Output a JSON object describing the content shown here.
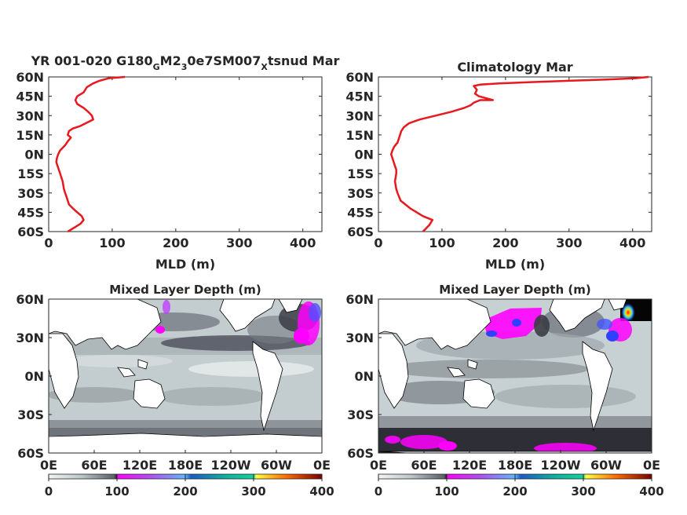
{
  "chart_data": [
    {
      "type": "line",
      "title_main": "YR 001-020 G180",
      "title_sub1": "G",
      "title_mid": "M2",
      "title_sub2": "3",
      "title_mid2": "0e7SM007",
      "title_sub3": "X",
      "title_end": "tsnud Mar",
      "xlabel": "MLD (m)",
      "ylabel": "",
      "xlim": [
        0,
        430
      ],
      "ylim": [
        -60,
        60
      ],
      "xticks": [
        0,
        100,
        200,
        300,
        400
      ],
      "yticks": [
        60,
        45,
        30,
        15,
        0,
        -15,
        -30,
        -45,
        -60
      ],
      "ytick_labels": [
        "60N",
        "45N",
        "30N",
        "15N",
        "0N",
        "15S",
        "30S",
        "45S",
        "60S"
      ],
      "color": "#e8191e",
      "series": [
        {
          "x": [
            120,
            95,
            80,
            70,
            60,
            55,
            45,
            42,
            45,
            55,
            62,
            68,
            70,
            62,
            50,
            38,
            32,
            30,
            35,
            30,
            26,
            22,
            18,
            15,
            13,
            12,
            14,
            16,
            18,
            20,
            22,
            23,
            24,
            26,
            28,
            30,
            32,
            38,
            45,
            52,
            55,
            50,
            40,
            30
          ],
          "y": [
            60,
            59,
            57,
            55,
            52,
            48,
            45,
            42,
            39,
            36,
            33,
            30,
            27,
            25,
            22,
            20,
            18,
            15,
            13,
            10,
            7,
            5,
            3,
            0,
            -3,
            -6,
            -9,
            -12,
            -15,
            -18,
            -21,
            -24,
            -27,
            -30,
            -33,
            -36,
            -39,
            -42,
            -45,
            -48,
            -51,
            -54,
            -57,
            -60
          ]
        }
      ]
    },
    {
      "type": "line",
      "title": "Climatology Mar",
      "xlabel": "MLD (m)",
      "ylabel": "",
      "xlim": [
        0,
        430
      ],
      "ylim": [
        -60,
        60
      ],
      "xticks": [
        0,
        100,
        200,
        300,
        400
      ],
      "yticks": [
        60,
        45,
        30,
        15,
        0,
        -15,
        -30,
        -45,
        -60
      ],
      "ytick_labels": [
        "60N",
        "45N",
        "30N",
        "15N",
        "0N",
        "15S",
        "30S",
        "45S",
        "60S"
      ],
      "color": "#e8191e",
      "series": [
        {
          "x": [
            425,
            405,
            360,
            300,
            240,
            190,
            160,
            150,
            155,
            152,
            158,
            180,
            160,
            150,
            145,
            135,
            115,
            90,
            65,
            48,
            40,
            36,
            34,
            32,
            30,
            25,
            22,
            20,
            22,
            24,
            26,
            28,
            28,
            27,
            26,
            27,
            28,
            30,
            35,
            50,
            70,
            85,
            80,
            70
          ],
          "y": [
            60,
            59,
            58,
            57,
            56,
            55,
            54,
            53,
            50,
            47,
            45,
            42,
            42,
            40,
            38,
            36,
            33,
            30,
            27,
            24,
            21,
            18,
            15,
            12,
            9,
            6,
            3,
            0,
            -3,
            -6,
            -9,
            -12,
            -15,
            -18,
            -21,
            -24,
            -27,
            -30,
            -36,
            -42,
            -48,
            -51,
            -55,
            -60
          ]
        }
      ]
    },
    {
      "type": "heatmap",
      "title": "Mixed Layer Depth (m)",
      "xtick_labels": [
        "0E",
        "60E",
        "120E",
        "180E",
        "120W",
        "60W",
        "0E"
      ],
      "ytick_labels": [
        "60N",
        "30N",
        "0N",
        "30S",
        "60S"
      ],
      "colorbar": {
        "ticks": [
          "0",
          "100",
          "200",
          "300",
          "400"
        ],
        "range": [
          0,
          400
        ]
      }
    },
    {
      "type": "heatmap",
      "title": "Mixed Layer Depth (m)",
      "xtick_labels": [
        "0E",
        "60E",
        "120E",
        "180E",
        "120W",
        "60W",
        "0E"
      ],
      "ytick_labels": [
        "60N",
        "30N",
        "0N",
        "30S",
        "60S"
      ],
      "colorbar": {
        "ticks": [
          "0",
          "100",
          "200",
          "300",
          "400"
        ],
        "range": [
          0,
          400
        ]
      }
    }
  ]
}
